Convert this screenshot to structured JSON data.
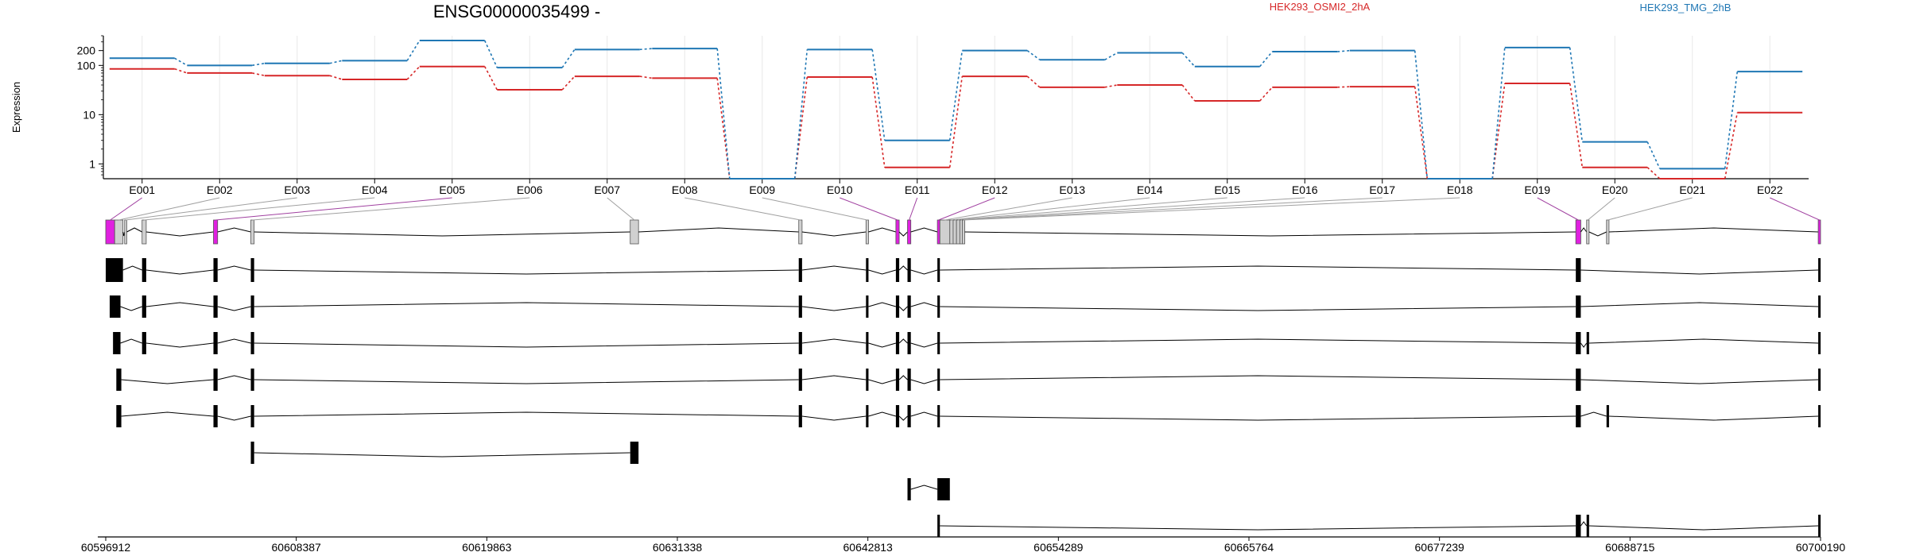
{
  "title": "ENSG00000035499 -",
  "legend": [
    {
      "name": "HEK293_OSMI2_2hA",
      "color": "#d62728"
    },
    {
      "name": "HEK293_TMG_2hB",
      "color": "#1f77b4"
    }
  ],
  "colors": {
    "exon_highlight": "#e020e0",
    "exon_plain": "#d0d0d0",
    "transcript_exon": "#000000",
    "connector_purple": "#a040a0",
    "connector_gray": "#a0a0a0",
    "grid": "#e8e8e8"
  },
  "chart_data": {
    "type": "line",
    "ylabel": "Expression",
    "yscale": "log",
    "ylim": [
      0.5,
      400
    ],
    "yticks": [
      1,
      10,
      100,
      200
    ],
    "ytick_labels": [
      "1",
      "10",
      "100",
      "200"
    ],
    "categories": [
      "E001",
      "E002",
      "E003",
      "E004",
      "E005",
      "E006",
      "E007",
      "E008",
      "E009",
      "E010",
      "E011",
      "E012",
      "E013",
      "E014",
      "E015",
      "E016",
      "E017",
      "E018",
      "E019",
      "E020",
      "E021",
      "E022"
    ],
    "series": [
      {
        "name": "HEK293_OSMI2_2hA",
        "values": [
          85,
          70,
          62,
          52,
          95,
          32,
          60,
          55,
          0.5,
          58,
          0.85,
          60,
          36,
          40,
          19,
          36,
          37,
          0.5,
          43,
          0.85,
          0.5,
          11
        ]
      },
      {
        "name": "HEK293_TMG_2hB",
        "values": [
          140,
          100,
          110,
          125,
          320,
          90,
          210,
          220,
          0.5,
          210,
          3,
          200,
          130,
          180,
          95,
          190,
          200,
          0.5,
          230,
          2.8,
          0.8,
          75
        ]
      }
    ]
  },
  "genome_axis": {
    "start": 60596912,
    "end": 60700190,
    "tick_labels": [
      "60596912",
      "60608387",
      "60619863",
      "60631338",
      "60642813",
      "60654289",
      "60665764",
      "60677239",
      "60688715",
      "60700190"
    ]
  },
  "exon_bins": [
    {
      "id": "E001",
      "start": 60596912,
      "end": 60597450,
      "highlighted": true
    },
    {
      "id": "E002",
      "start": 60597450,
      "end": 60597950,
      "highlighted": false
    },
    {
      "id": "E003",
      "start": 60598050,
      "end": 60598180,
      "highlighted": false
    },
    {
      "id": "E004",
      "start": 60599100,
      "end": 60599350,
      "highlighted": false
    },
    {
      "id": "E005",
      "start": 60603400,
      "end": 60603650,
      "highlighted": true
    },
    {
      "id": "E006",
      "start": 60605650,
      "end": 60605850,
      "highlighted": false
    },
    {
      "id": "E007",
      "start": 60628500,
      "end": 60629000,
      "highlighted": false
    },
    {
      "id": "E008",
      "start": 60638650,
      "end": 60638850,
      "highlighted": false
    },
    {
      "id": "E009",
      "start": 60642700,
      "end": 60642850,
      "highlighted": false
    },
    {
      "id": "E010",
      "start": 60644500,
      "end": 60644700,
      "highlighted": true
    },
    {
      "id": "E011",
      "start": 60645200,
      "end": 60645400,
      "highlighted": true
    },
    {
      "id": "E012",
      "start": 60647000,
      "end": 60647150,
      "highlighted": true
    },
    {
      "id": "E013",
      "start": 60647150,
      "end": 60647750,
      "highlighted": false
    },
    {
      "id": "E014",
      "start": 60647750,
      "end": 60647950,
      "highlighted": false
    },
    {
      "id": "E015",
      "start": 60647950,
      "end": 60648150,
      "highlighted": false
    },
    {
      "id": "E016",
      "start": 60648150,
      "end": 60648350,
      "highlighted": false
    },
    {
      "id": "E017",
      "start": 60648350,
      "end": 60648500,
      "highlighted": false
    },
    {
      "id": "E018",
      "start": 60648500,
      "end": 60648650,
      "highlighted": false
    },
    {
      "id": "E019",
      "start": 60685450,
      "end": 60685750,
      "highlighted": true
    },
    {
      "id": "E020",
      "start": 60686100,
      "end": 60686250,
      "highlighted": false
    },
    {
      "id": "E021",
      "start": 60687300,
      "end": 60687450,
      "highlighted": false
    },
    {
      "id": "E022",
      "start": 60700050,
      "end": 60700190,
      "highlighted": true
    }
  ],
  "transcripts": [
    {
      "exons": [
        [
          60596912,
          60597950
        ],
        [
          60599100,
          60599350
        ],
        [
          60603400,
          60603650
        ],
        [
          60605650,
          60605850
        ],
        [
          60638650,
          60638850
        ],
        [
          60642700,
          60642850
        ],
        [
          60644500,
          60644700
        ],
        [
          60645200,
          60645400
        ],
        [
          60647000,
          60647150
        ],
        [
          60685450,
          60685750
        ],
        [
          60700050,
          60700190
        ]
      ]
    },
    {
      "exons": [
        [
          60597150,
          60597800
        ],
        [
          60599100,
          60599350
        ],
        [
          60603400,
          60603650
        ],
        [
          60605650,
          60605850
        ],
        [
          60638650,
          60638850
        ],
        [
          60642700,
          60642850
        ],
        [
          60644500,
          60644700
        ],
        [
          60645200,
          60645400
        ],
        [
          60647000,
          60647150
        ],
        [
          60685450,
          60685750
        ],
        [
          60700050,
          60700190
        ]
      ]
    },
    {
      "exons": [
        [
          60597350,
          60597800
        ],
        [
          60599100,
          60599350
        ],
        [
          60603400,
          60603650
        ],
        [
          60605650,
          60605850
        ],
        [
          60638650,
          60638850
        ],
        [
          60642700,
          60642850
        ],
        [
          60644500,
          60644700
        ],
        [
          60645200,
          60645400
        ],
        [
          60647000,
          60647150
        ],
        [
          60685450,
          60685750
        ],
        [
          60686100,
          60686250
        ],
        [
          60700050,
          60700190
        ]
      ]
    },
    {
      "exons": [
        [
          60597550,
          60597850
        ],
        [
          60603400,
          60603650
        ],
        [
          60605650,
          60605850
        ],
        [
          60638650,
          60638850
        ],
        [
          60642700,
          60642850
        ],
        [
          60644500,
          60644700
        ],
        [
          60645200,
          60645400
        ],
        [
          60647000,
          60647150
        ],
        [
          60685450,
          60685750
        ],
        [
          60700050,
          60700190
        ]
      ]
    },
    {
      "exons": [
        [
          60597550,
          60597850
        ],
        [
          60603400,
          60603650
        ],
        [
          60605650,
          60605850
        ],
        [
          60638650,
          60638850
        ],
        [
          60642700,
          60642850
        ],
        [
          60644500,
          60644700
        ],
        [
          60645200,
          60645400
        ],
        [
          60647000,
          60647150
        ],
        [
          60685450,
          60685750
        ],
        [
          60687300,
          60687450
        ],
        [
          60700050,
          60700190
        ]
      ]
    },
    {
      "exons": [
        [
          60605650,
          60605850
        ],
        [
          60628500,
          60629000
        ]
      ]
    },
    {
      "exons": [
        [
          60645200,
          60645400
        ],
        [
          60647000,
          60647750
        ]
      ]
    },
    {
      "exons": [
        [
          60647000,
          60647150
        ],
        [
          60685450,
          60685750
        ],
        [
          60686100,
          60686250
        ],
        [
          60700050,
          60700190
        ]
      ]
    }
  ]
}
